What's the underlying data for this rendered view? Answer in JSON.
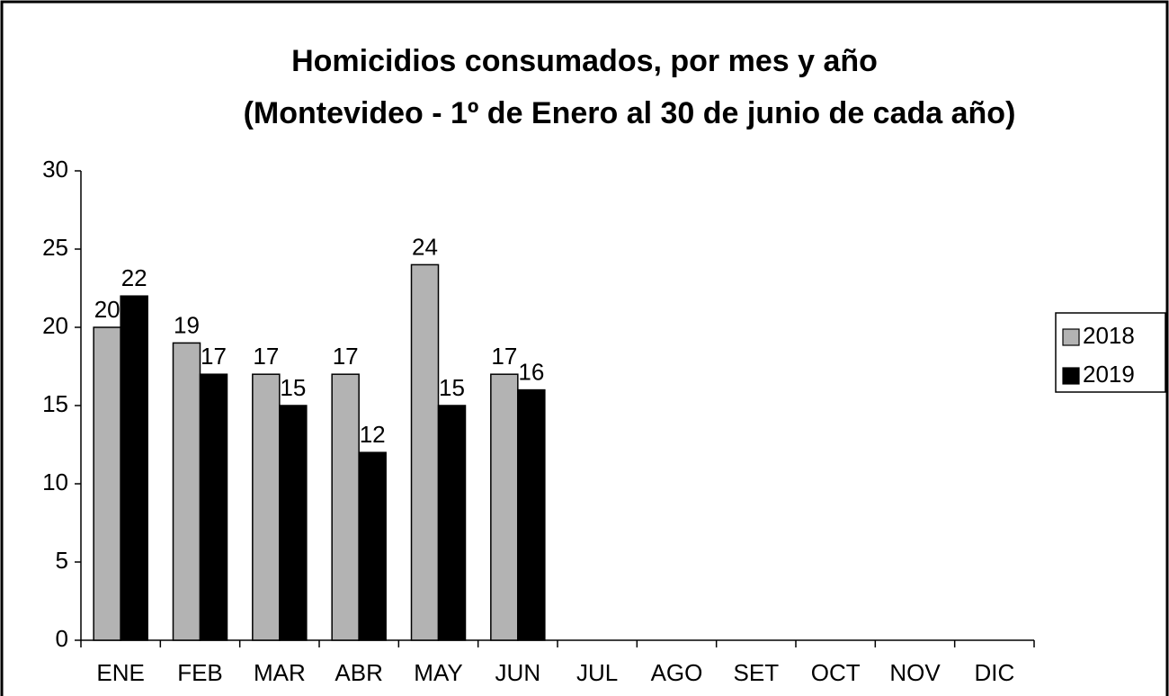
{
  "chart_data": {
    "type": "bar",
    "title": "Homicidios consumados, por mes y año",
    "subtitle": "(Montevideo - 1º de Enero al 30 de junio de cada año)",
    "categories": [
      "ENE",
      "FEB",
      "MAR",
      "ABR",
      "MAY",
      "JUN",
      "JUL",
      "AGO",
      "SET",
      "OCT",
      "NOV",
      "DIC"
    ],
    "series": [
      {
        "name": "2018",
        "color": "#b3b3b3",
        "values": [
          20,
          19,
          17,
          17,
          24,
          17,
          null,
          null,
          null,
          null,
          null,
          null
        ]
      },
      {
        "name": "2019",
        "color": "#000000",
        "values": [
          22,
          17,
          15,
          12,
          15,
          16,
          null,
          null,
          null,
          null,
          null,
          null
        ]
      }
    ],
    "ylim": [
      0,
      30
    ],
    "yticks": [
      0,
      5,
      10,
      15,
      20,
      25,
      30
    ],
    "grid": false,
    "legend": "right"
  }
}
